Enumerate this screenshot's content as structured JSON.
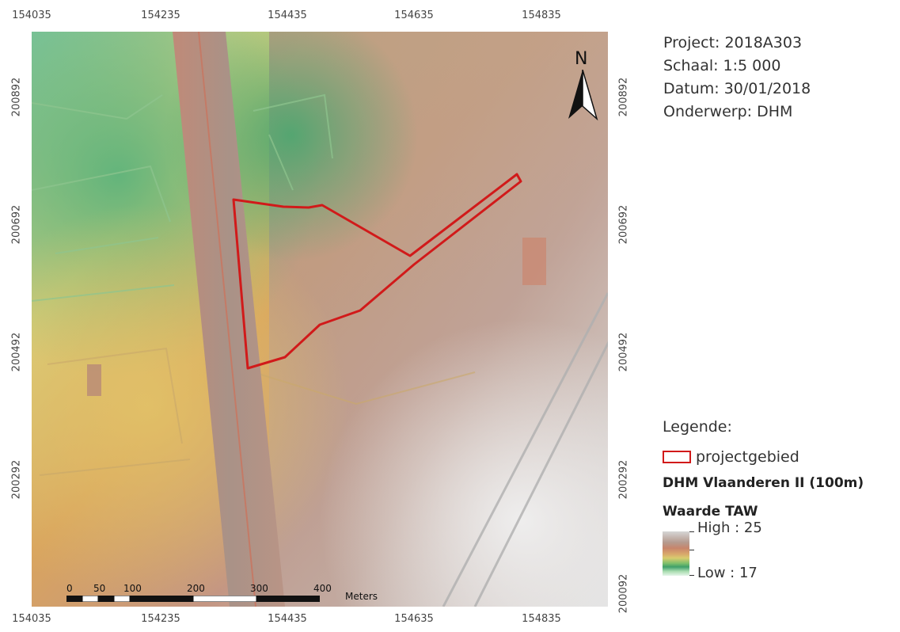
{
  "map": {
    "x_ticks_top": [
      "154035",
      "154235",
      "154435",
      "154635",
      "154835"
    ],
    "x_ticks_bottom": [
      "154035",
      "154235",
      "154435",
      "154635",
      "154835"
    ],
    "y_ticks_left": [
      "200892",
      "200692",
      "200492",
      "200292"
    ],
    "y_ticks_right": [
      "200892",
      "200692",
      "200492",
      "200292",
      "200092"
    ],
    "north_label": "N",
    "scale": {
      "labels": [
        "0",
        "50",
        "100",
        "200",
        "300",
        "400"
      ],
      "unit": "Meters"
    }
  },
  "info": {
    "project": "Project: 2018A303",
    "schaal": "Schaal: 1:5 000",
    "datum": "Datum: 30/01/2018",
    "onderwerp": "Onderwerp: DHM"
  },
  "legend": {
    "title": "Legende:",
    "project_area_label": "projectgebied",
    "dataset": "DHM Vlaanderen II (100m)",
    "field": "Waarde TAW",
    "high": "High : 25",
    "low": "Low : 17",
    "project_area_color": "#d11a1a"
  }
}
